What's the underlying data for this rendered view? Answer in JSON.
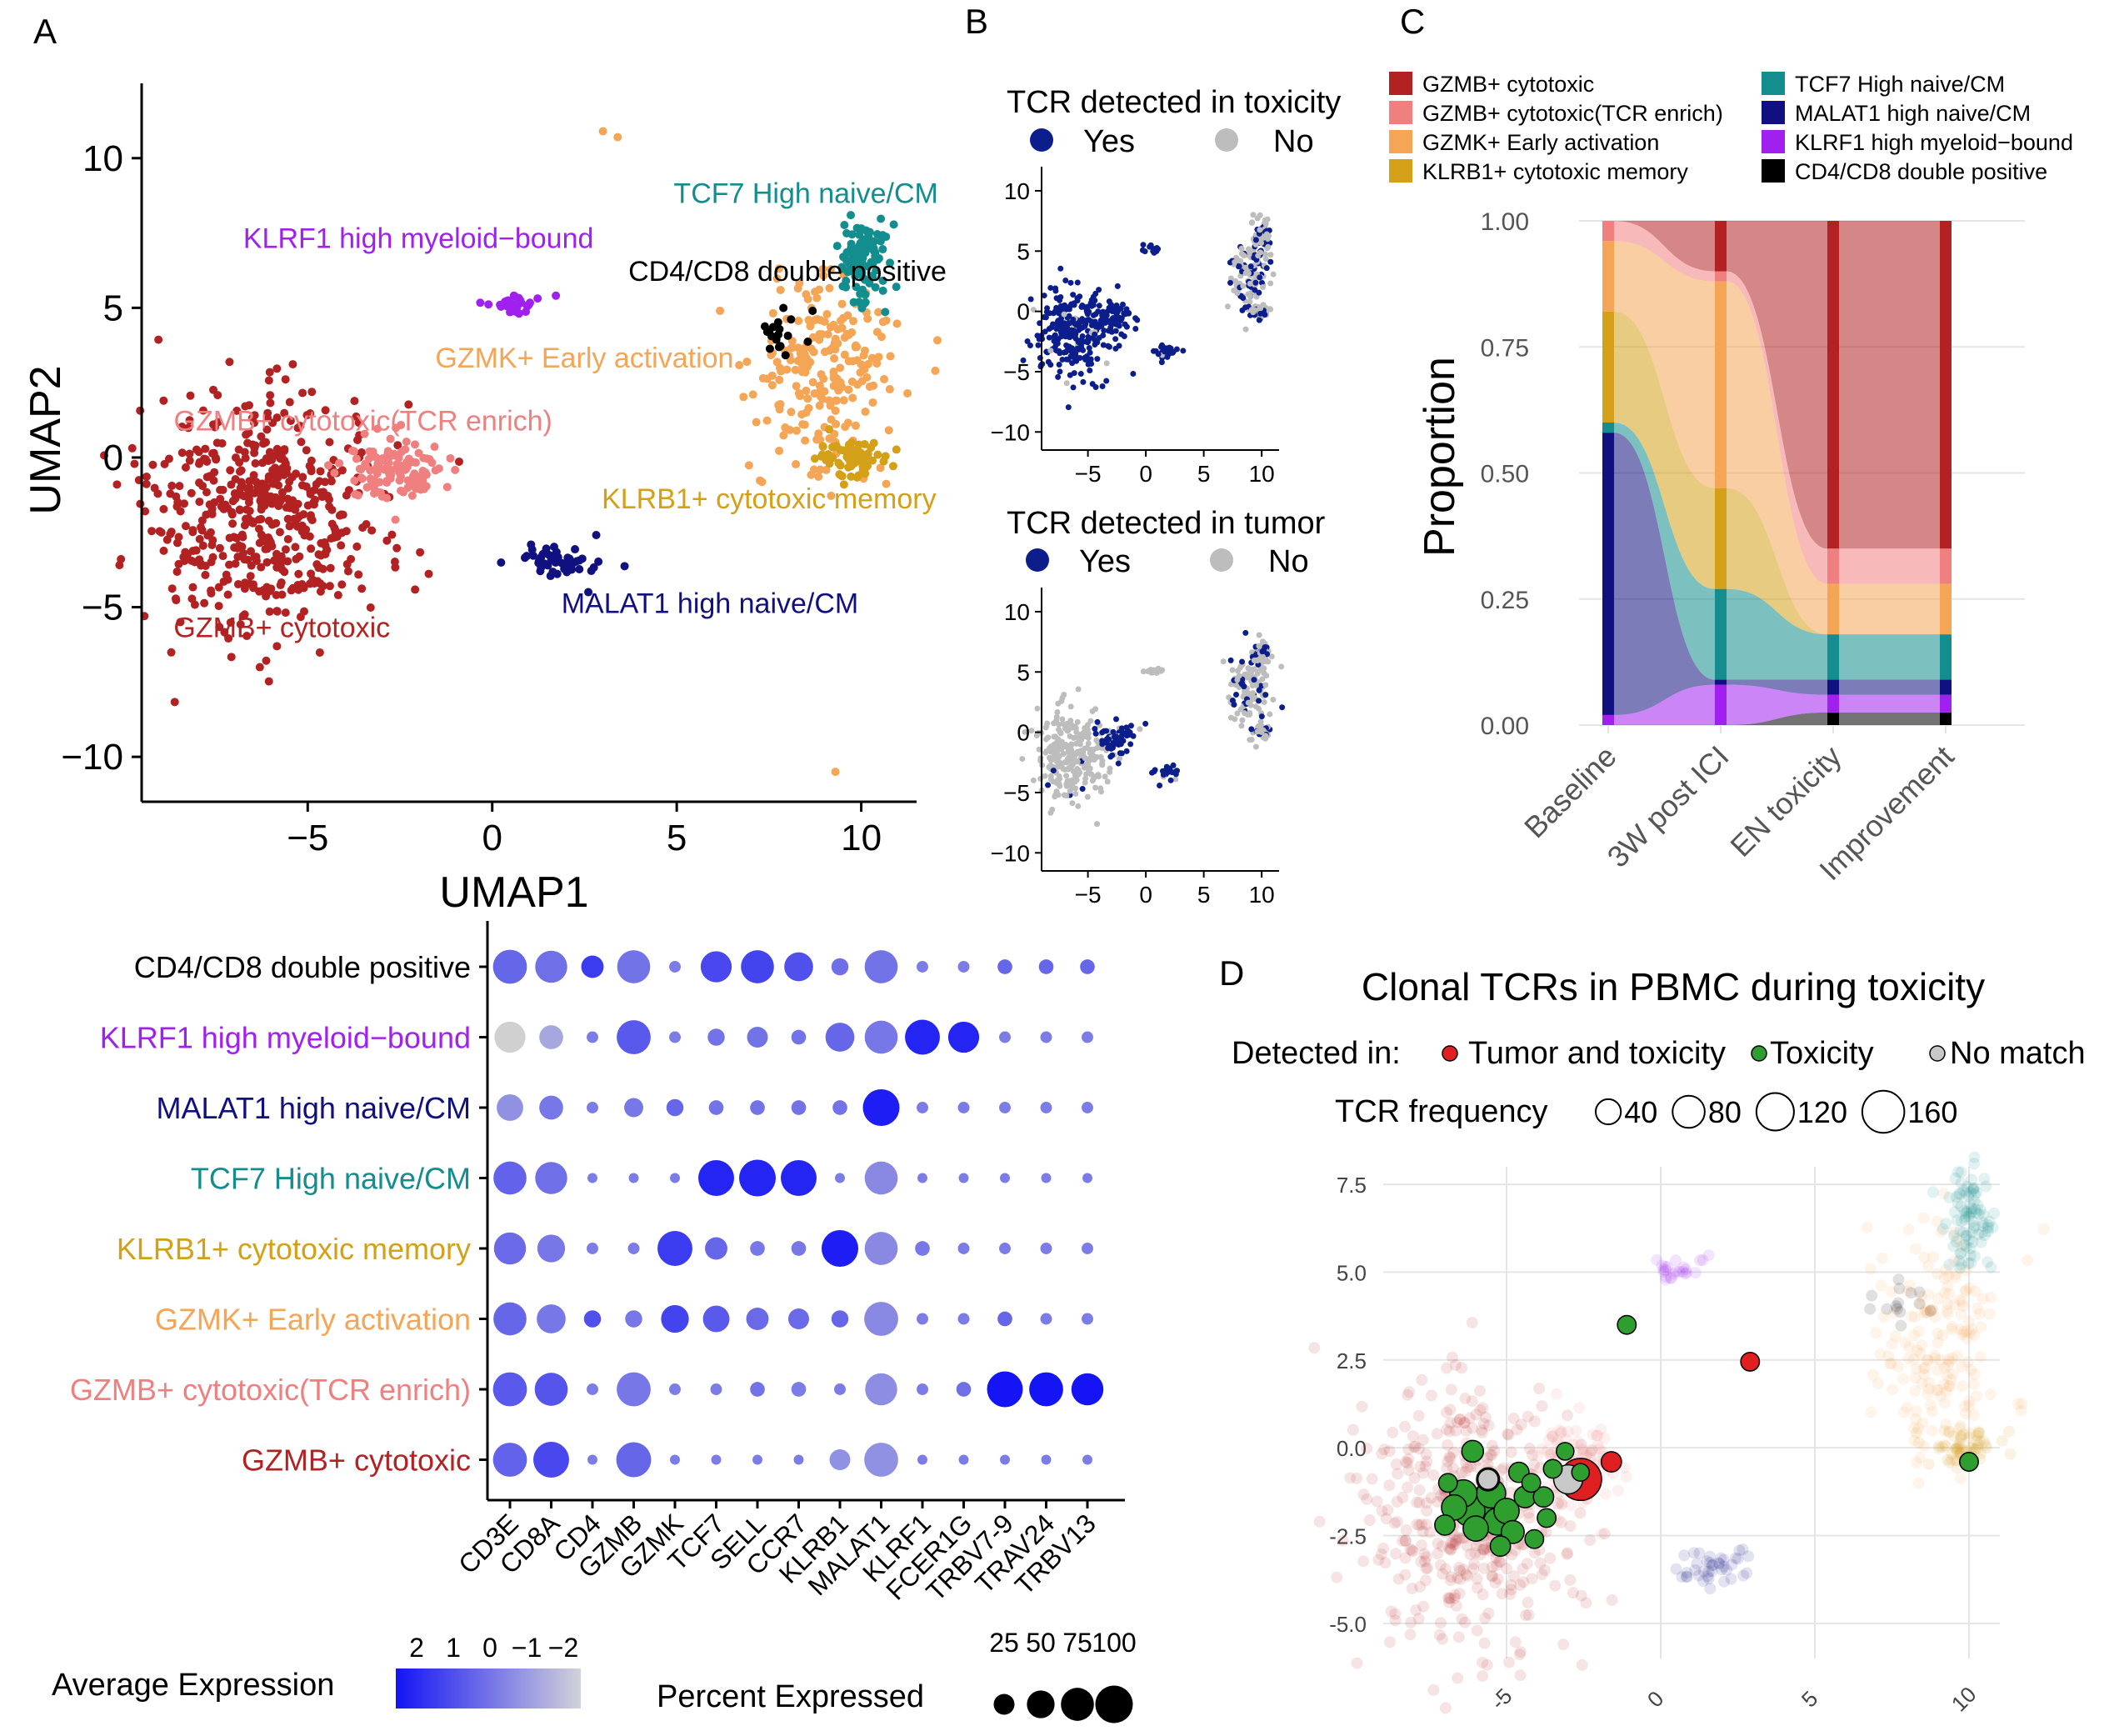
{
  "colors": {
    "gzmb": "#B22222",
    "gzmb_tcr": "#F08080",
    "gzmk": "#F4A555",
    "klrb1": "#D4A017",
    "tcf7": "#138D8D",
    "malat1": "#101080",
    "klrf1": "#A020F0",
    "dp": "#000000",
    "yes": "#0B1E8C",
    "no": "#BDBDBD",
    "tumor": "#E02020",
    "toxicity": "#2E9E2E",
    "nomatch": "#C8C8C8"
  },
  "panels": {
    "a": "A",
    "b": "B",
    "c": "C",
    "d": "D"
  },
  "chart_data": [
    {
      "type": "scatter",
      "title": "",
      "xlabel": "UMAP1",
      "ylabel": "UMAP2",
      "xlim": [
        -9.5,
        11.5
      ],
      "ylim": [
        -11.5,
        12.5
      ],
      "xticks": [
        -5,
        0,
        5,
        10
      ],
      "yticks": [
        -10,
        -5,
        0,
        5,
        10
      ],
      "cluster_labels": [
        {
          "text": "TCF7 High naive/CM",
          "x": 8.5,
          "y": 8.5,
          "color": "tcf7"
        },
        {
          "text": "KLRF1 high myeloid−bound",
          "x": -2,
          "y": 7,
          "color": "klrf1"
        },
        {
          "text": "CD4/CD8 double positive",
          "x": 8,
          "y": 5.9,
          "color": "dp"
        },
        {
          "text": "GZMK+ Early activation",
          "x": 2.5,
          "y": 3,
          "color": "gzmk"
        },
        {
          "text": "GZMB+ cytotoxic(TCR enrich)",
          "x": -3.5,
          "y": 0.9,
          "color": "gzmb_tcr"
        },
        {
          "text": "KLRB1+ cytotoxic memory",
          "x": 7.5,
          "y": -1.7,
          "color": "klrb1"
        },
        {
          "text": "MALAT1 high naive/CM",
          "x": 5.9,
          "y": -5.2,
          "color": "malat1"
        },
        {
          "text": "GZMB+ cytotoxic",
          "x": -5.7,
          "y": -6,
          "color": "gzmb"
        }
      ],
      "clusters": [
        {
          "name": "GZMB+ cytotoxic",
          "color": "gzmb",
          "cx": -6.2,
          "cy": -1.9,
          "sx": 1.6,
          "sy": 1.9,
          "n": 520
        },
        {
          "name": "GZMB+ cytotoxic(TCR enrich)",
          "color": "gzmb_tcr",
          "cx": -2.7,
          "cy": -0.5,
          "sx": 0.7,
          "sy": 0.6,
          "n": 120
        },
        {
          "name": "KLRF1 high myeloid−bound",
          "color": "klrf1",
          "cx": 0.6,
          "cy": 5.1,
          "sx": 0.4,
          "sy": 0.15,
          "n": 30
        },
        {
          "name": "MALAT1 high naive/CM",
          "color": "malat1",
          "cx": 1.8,
          "cy": -3.4,
          "sx": 0.6,
          "sy": 0.3,
          "n": 50
        },
        {
          "name": "GZMK+ Early activation",
          "color": "gzmk",
          "cx": 9.0,
          "cy": 3.0,
          "sx": 0.9,
          "sy": 1.6,
          "n": 220
        },
        {
          "name": "TCF7 High naive/CM",
          "color": "tcf7",
          "cx": 10.0,
          "cy": 6.4,
          "sx": 0.35,
          "sy": 0.7,
          "n": 110
        },
        {
          "name": "KLRB1+ cytotoxic memory",
          "color": "klrb1",
          "cx": 9.8,
          "cy": 0.0,
          "sx": 0.5,
          "sy": 0.3,
          "n": 70
        },
        {
          "name": "CD4/CD8 double positive",
          "color": "dp",
          "cx": 7.8,
          "cy": 4.2,
          "sx": 0.4,
          "sy": 0.4,
          "n": 18
        }
      ]
    },
    {
      "type": "scatter",
      "title": "TCR detected in toxicity",
      "legend": [
        "Yes",
        "No"
      ],
      "xticks": [
        -5,
        0,
        5,
        10
      ],
      "yticks": [
        -10,
        -5,
        0,
        5,
        10
      ],
      "xlim": [
        -9,
        11.5
      ],
      "ylim": [
        -11.5,
        12
      ]
    },
    {
      "type": "scatter",
      "title": "TCR detected in tumor",
      "legend": [
        "Yes",
        "No"
      ],
      "xticks": [
        -5,
        0,
        5,
        10
      ],
      "yticks": [
        -10,
        -5,
        0,
        5,
        10
      ],
      "xlim": [
        -9,
        11.5
      ],
      "ylim": [
        -11.5,
        12
      ]
    },
    {
      "type": "area",
      "ylabel": "Proportion",
      "categories": [
        "Baseline",
        "3W post ICI",
        "EN toxicity",
        "Improvement"
      ],
      "yticks": [
        "0.00",
        "0.25",
        "0.50",
        "0.75",
        "1.00"
      ],
      "ylim": [
        0,
        1
      ],
      "series": [
        {
          "name": "CD4/CD8 double positive",
          "color": "dp",
          "values": [
            0.0,
            0.0,
            0.025,
            0.025
          ]
        },
        {
          "name": "KLRF1 high myeloid−bound",
          "color": "klrf1",
          "values": [
            0.02,
            0.08,
            0.035,
            0.035
          ]
        },
        {
          "name": "MALAT1 high naive/CM",
          "color": "malat1",
          "values": [
            0.56,
            0.01,
            0.03,
            0.03
          ]
        },
        {
          "name": "TCF7 High naive/CM",
          "color": "tcf7",
          "values": [
            0.02,
            0.18,
            0.09,
            0.09
          ]
        },
        {
          "name": "KLRB1+ cytotoxic memory",
          "color": "klrb1",
          "values": [
            0.22,
            0.2,
            0.0,
            0.0
          ]
        },
        {
          "name": "GZMK+ Early activation",
          "color": "gzmk",
          "values": [
            0.14,
            0.41,
            0.1,
            0.1
          ]
        },
        {
          "name": "GZMB+ cytotoxic(TCR enrich)",
          "color": "gzmb_tcr",
          "values": [
            0.04,
            0.02,
            0.07,
            0.07
          ]
        },
        {
          "name": "GZMB+ cytotoxic",
          "color": "gzmb",
          "values": [
            0.0,
            0.1,
            0.65,
            0.65
          ]
        }
      ]
    },
    {
      "type": "heatmap",
      "subtype": "dotplot",
      "genes": [
        "CD3E",
        "CD8A",
        "CD4",
        "GZMB",
        "GZMK",
        "TCF7",
        "SELL",
        "CCR7",
        "KLRB1",
        "MALAT1",
        "KLRF1",
        "FCER1G",
        "TRBV7-9",
        "TRAV24",
        "TRBV13"
      ],
      "rows": [
        {
          "name": "CD4/CD8 double positive",
          "color": "dp",
          "pct": [
            80,
            70,
            30,
            75,
            5,
            65,
            75,
            55,
            15,
            75,
            5,
            5,
            10,
            10,
            10
          ],
          "avg": [
            0.5,
            0.3,
            1.5,
            0.2,
            0,
            1.2,
            1.3,
            1.0,
            0.3,
            0.2,
            0,
            0,
            0.5,
            0.5,
            0.5
          ]
        },
        {
          "name": "KLRF1 high myeloid−bound",
          "color": "klrf1",
          "pct": [
            65,
            35,
            5,
            80,
            5,
            15,
            25,
            10,
            55,
            75,
            85,
            65,
            5,
            5,
            5
          ],
          "avg": [
            -2,
            -1,
            0,
            0.8,
            0,
            0.2,
            0.2,
            0.2,
            0.5,
            0.1,
            2,
            2,
            0,
            0,
            0
          ],
          "grey": [
            0
          ]
        },
        {
          "name": "MALAT1 high naive/CM",
          "color": "malat1",
          "pct": [
            45,
            35,
            5,
            20,
            15,
            10,
            10,
            10,
            10,
            95,
            5,
            5,
            5,
            5,
            5
          ],
          "avg": [
            -0.5,
            0.1,
            0,
            0.1,
            0.5,
            0.2,
            0.2,
            0.2,
            0.2,
            2.2,
            0,
            0,
            0,
            0,
            0
          ]
        },
        {
          "name": "TCF7 High naive/CM",
          "color": "tcf7",
          "pct": [
            75,
            70,
            3,
            3,
            3,
            90,
            95,
            90,
            3,
            75,
            3,
            3,
            3,
            3,
            3
          ],
          "avg": [
            0.6,
            0.3,
            0,
            0,
            0,
            2,
            2,
            2,
            0,
            -0.3,
            0,
            0,
            0,
            0,
            0
          ]
        },
        {
          "name": "KLRB1+ cytotoxic memory",
          "color": "klrb1",
          "pct": [
            70,
            50,
            5,
            5,
            85,
            30,
            10,
            10,
            95,
            75,
            10,
            5,
            5,
            5,
            5
          ],
          "avg": [
            0.4,
            0.1,
            0,
            0,
            1.5,
            0.5,
            0.1,
            0.1,
            2.2,
            -0.3,
            0.1,
            0,
            0,
            0,
            0
          ]
        },
        {
          "name": "GZMK+ Early activation",
          "color": "gzmk",
          "pct": [
            75,
            55,
            15,
            15,
            50,
            45,
            30,
            25,
            15,
            80,
            5,
            5,
            10,
            5,
            5
          ],
          "avg": [
            0.5,
            0.1,
            1,
            0.1,
            1.3,
            0.8,
            0.4,
            0.4,
            0.5,
            -0.3,
            0,
            0,
            0.5,
            0,
            0
          ]
        },
        {
          "name": "GZMB+ cytotoxic(TCR enrich)",
          "color": "gzmb_tcr",
          "pct": [
            80,
            75,
            5,
            80,
            5,
            5,
            10,
            10,
            5,
            70,
            5,
            10,
            90,
            80,
            70
          ],
          "avg": [
            0.8,
            0.9,
            0,
            0.1,
            0,
            0,
            0.2,
            0,
            0,
            -0.4,
            0,
            0.3,
            2.4,
            2.4,
            2.4
          ]
        },
        {
          "name": "GZMB+ cytotoxic",
          "color": "gzmb",
          "pct": [
            80,
            90,
            3,
            85,
            3,
            3,
            3,
            3,
            25,
            80,
            3,
            3,
            3,
            3,
            3
          ],
          "avg": [
            0.6,
            1.2,
            0,
            0.5,
            0,
            0,
            0,
            0,
            -0.5,
            -0.5,
            0,
            0,
            0,
            0,
            0
          ]
        }
      ],
      "color_legend": {
        "title": "Average Expression",
        "ticks": [
          "2",
          "1",
          "0",
          "−1",
          "−2"
        ]
      },
      "size_legend": {
        "title": "Percent Expressed",
        "ticks": [
          "25",
          "50",
          "75",
          "100"
        ]
      }
    },
    {
      "type": "scatter",
      "title": "Clonal TCRs in PBMC during toxicity",
      "legend_label": "Detected in:",
      "legend": [
        "Tumor and toxicity",
        "Toxicity",
        "No match"
      ],
      "size_label": "TCR frequency",
      "size_ticks": [
        "40",
        "80",
        "120",
        "160"
      ],
      "xticks": [
        "-5",
        "0",
        "5",
        "10"
      ],
      "yticks": [
        "7.5",
        "5.0",
        "2.5",
        "0.0",
        "-2.5",
        "-5.0"
      ],
      "xlim": [
        -9,
        11
      ],
      "ylim": [
        -6,
        8
      ],
      "points": [
        {
          "x": -2.6,
          "y": -0.9,
          "freq": 160,
          "group": "tumor"
        },
        {
          "x": -3.0,
          "y": -0.9,
          "freq": 60,
          "group": "nomatch"
        },
        {
          "x": -1.6,
          "y": -0.4,
          "freq": 20,
          "group": "tumor"
        },
        {
          "x": 2.9,
          "y": 2.45,
          "freq": 15,
          "group": "tumor"
        },
        {
          "x": -1.1,
          "y": 3.5,
          "freq": 15,
          "group": "toxicity"
        },
        {
          "x": 10,
          "y": -0.4,
          "freq": 15,
          "group": "toxicity"
        },
        {
          "x": -5.8,
          "y": -1.6,
          "freq": 90,
          "group": "toxicity"
        },
        {
          "x": -6.2,
          "y": -1.8,
          "freq": 70,
          "group": "toxicity"
        },
        {
          "x": -5.5,
          "y": -1.3,
          "freq": 60,
          "group": "toxicity"
        },
        {
          "x": -6.4,
          "y": -1.3,
          "freq": 50,
          "group": "toxicity"
        },
        {
          "x": -5.3,
          "y": -2.1,
          "freq": 50,
          "group": "toxicity"
        },
        {
          "x": -5.0,
          "y": -1.8,
          "freq": 40,
          "group": "toxicity"
        },
        {
          "x": -6.0,
          "y": -2.3,
          "freq": 40,
          "group": "toxicity"
        },
        {
          "x": -6.7,
          "y": -1.7,
          "freq": 40,
          "group": "toxicity"
        },
        {
          "x": -4.8,
          "y": -2.4,
          "freq": 30,
          "group": "toxicity"
        },
        {
          "x": -5.6,
          "y": -0.9,
          "freq": 30,
          "group": "toxicity"
        },
        {
          "x": -4.4,
          "y": -1.4,
          "freq": 25,
          "group": "toxicity"
        },
        {
          "x": -6.1,
          "y": -0.1,
          "freq": 25,
          "group": "toxicity"
        },
        {
          "x": -4.6,
          "y": -0.7,
          "freq": 20,
          "group": "toxicity"
        },
        {
          "x": -3.8,
          "y": -1.4,
          "freq": 20,
          "group": "toxicity"
        },
        {
          "x": -7.0,
          "y": -2.2,
          "freq": 20,
          "group": "toxicity"
        },
        {
          "x": -5.2,
          "y": -2.8,
          "freq": 20,
          "group": "toxicity"
        },
        {
          "x": -4.1,
          "y": -2.6,
          "freq": 15,
          "group": "toxicity"
        },
        {
          "x": -6.9,
          "y": -1.0,
          "freq": 15,
          "group": "toxicity"
        },
        {
          "x": -3.5,
          "y": -0.6,
          "freq": 15,
          "group": "toxicity"
        },
        {
          "x": -2.6,
          "y": -0.7,
          "freq": 12,
          "group": "toxicity"
        },
        {
          "x": -3.7,
          "y": -2.0,
          "freq": 15,
          "group": "toxicity"
        },
        {
          "x": -5.6,
          "y": -0.9,
          "freq": 20,
          "group": "nomatch"
        },
        {
          "x": -4.2,
          "y": -1.0,
          "freq": 15,
          "group": "toxicity"
        },
        {
          "x": -3.1,
          "y": -0.1,
          "freq": 12,
          "group": "toxicity"
        }
      ]
    }
  ]
}
